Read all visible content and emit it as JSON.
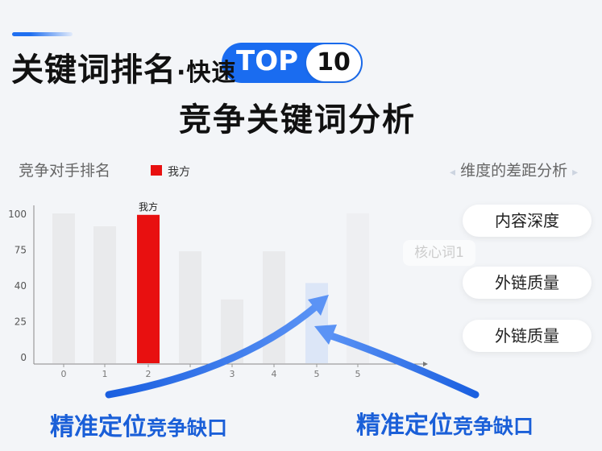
{
  "header": {
    "title_main": "关键词排名",
    "title_dot": "·快速",
    "pill_label": "TOP",
    "pill_number": "10",
    "subtitle": "竞争关键词分析"
  },
  "left_label": "竞争对手排名",
  "right_label": "维度的差距分析",
  "right_label_arrows": [
    "◂",
    "▸"
  ],
  "dimension_cards": [
    "内容深度",
    "外链质量",
    "外链质量"
  ],
  "ghost_card": "核心词1",
  "captions": [
    {
      "main": "精准定位",
      "sub": "竞争缺口"
    },
    {
      "main": "精准定位",
      "sub": "竞争缺口"
    }
  ],
  "colors": {
    "highlight": "#e81010",
    "accent": "#1a6cf0",
    "bar": "#e9eaec",
    "gap_bar": "#dce6f7"
  },
  "chart_data": {
    "type": "bar",
    "legend": [
      {
        "name": "我方",
        "color": "#e81010"
      }
    ],
    "legend_placement": "top-left",
    "categories": [
      "0",
      "1",
      "2",
      "",
      "3",
      "4",
      "5",
      "5"
    ],
    "values": [
      100,
      91,
      99,
      73,
      34,
      73,
      42,
      100
    ],
    "highlight_index": 2,
    "highlight_label": "我方",
    "gap_index": 6,
    "yticks": [
      0,
      25,
      40,
      75,
      100
    ],
    "ylim": [
      0,
      100
    ],
    "grid": false
  }
}
